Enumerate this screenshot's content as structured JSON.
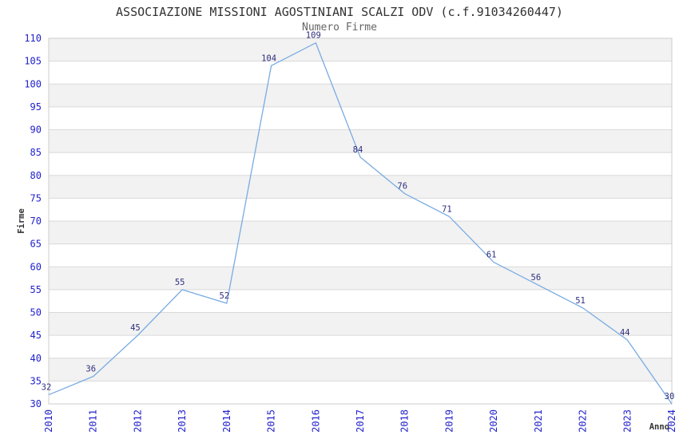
{
  "header": {
    "title": "ASSOCIAZIONE MISSIONI AGOSTINIANI SCALZI ODV (c.f.91034260447)",
    "subtitle": "Numero Firme"
  },
  "chart_data": {
    "type": "line",
    "title": "Numero Firme",
    "xlabel": "Anno",
    "ylabel": "Firme",
    "categories": [
      "2010",
      "2011",
      "2012",
      "2013",
      "2014",
      "2015",
      "2016",
      "2017",
      "2018",
      "2019",
      "2020",
      "2021",
      "2022",
      "2023",
      "2024"
    ],
    "series": [
      {
        "name": "Numero Firme",
        "values": [
          32,
          36,
          45,
          55,
          52,
          104,
          109,
          84,
          76,
          71,
          61,
          56,
          51,
          44,
          30
        ]
      }
    ],
    "ylim": [
      30,
      110
    ],
    "ytick_step": 5,
    "grid": "horizontal-bands",
    "legend_position": "none",
    "data_labels_visible": true,
    "colors": {
      "line": "#79abe2",
      "tick_label": "#2222cc",
      "data_label": "#2e2e80",
      "band": "#f2f2f2",
      "gridline": "#d9d9d9",
      "plot_border": "#cccccc",
      "title": "#333333",
      "subtitle": "#666666",
      "axis_label": "#333333"
    }
  }
}
